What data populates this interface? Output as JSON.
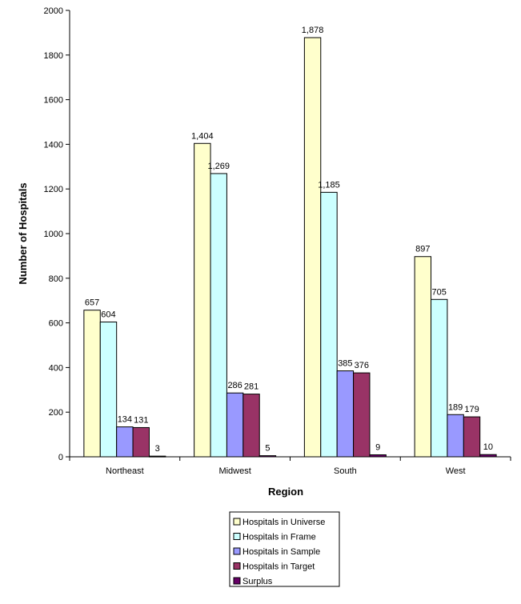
{
  "chart_data": {
    "type": "bar",
    "title": "",
    "xlabel": "Region",
    "ylabel": "Number of Hospitals",
    "ylim": [
      0,
      2000
    ],
    "ytick_step": 200,
    "yticks": [
      "0",
      "200",
      "400",
      "600",
      "800",
      "1000",
      "1200",
      "1400",
      "1600",
      "1800",
      "2000"
    ],
    "grid": false,
    "legend_placement": "bottom",
    "categories": [
      "Northeast",
      "Midwest",
      "South",
      "West"
    ],
    "series": [
      {
        "name": "Hospitals in Universe",
        "color": "#FFFFCC",
        "values": [
          657,
          1404,
          1878,
          897
        ],
        "labels": [
          "657",
          "1,404",
          "1,878",
          "897"
        ]
      },
      {
        "name": "Hospitals in Frame",
        "color": "#CCFFFF",
        "values": [
          604,
          1269,
          1185,
          705
        ],
        "labels": [
          "604",
          "1,269",
          "1,185",
          "705"
        ]
      },
      {
        "name": "Hospitals in Sample",
        "color": "#9999FF",
        "values": [
          134,
          286,
          385,
          189
        ],
        "labels": [
          "134",
          "286",
          "385",
          "189"
        ]
      },
      {
        "name": "Hospitals in Target",
        "color": "#993366",
        "values": [
          131,
          281,
          376,
          179
        ],
        "labels": [
          "131",
          "281",
          "376",
          "179"
        ]
      },
      {
        "name": "Surplus",
        "color": "#660066",
        "values": [
          3,
          5,
          9,
          10
        ],
        "labels": [
          "3",
          "5",
          "9",
          "10"
        ]
      }
    ]
  }
}
